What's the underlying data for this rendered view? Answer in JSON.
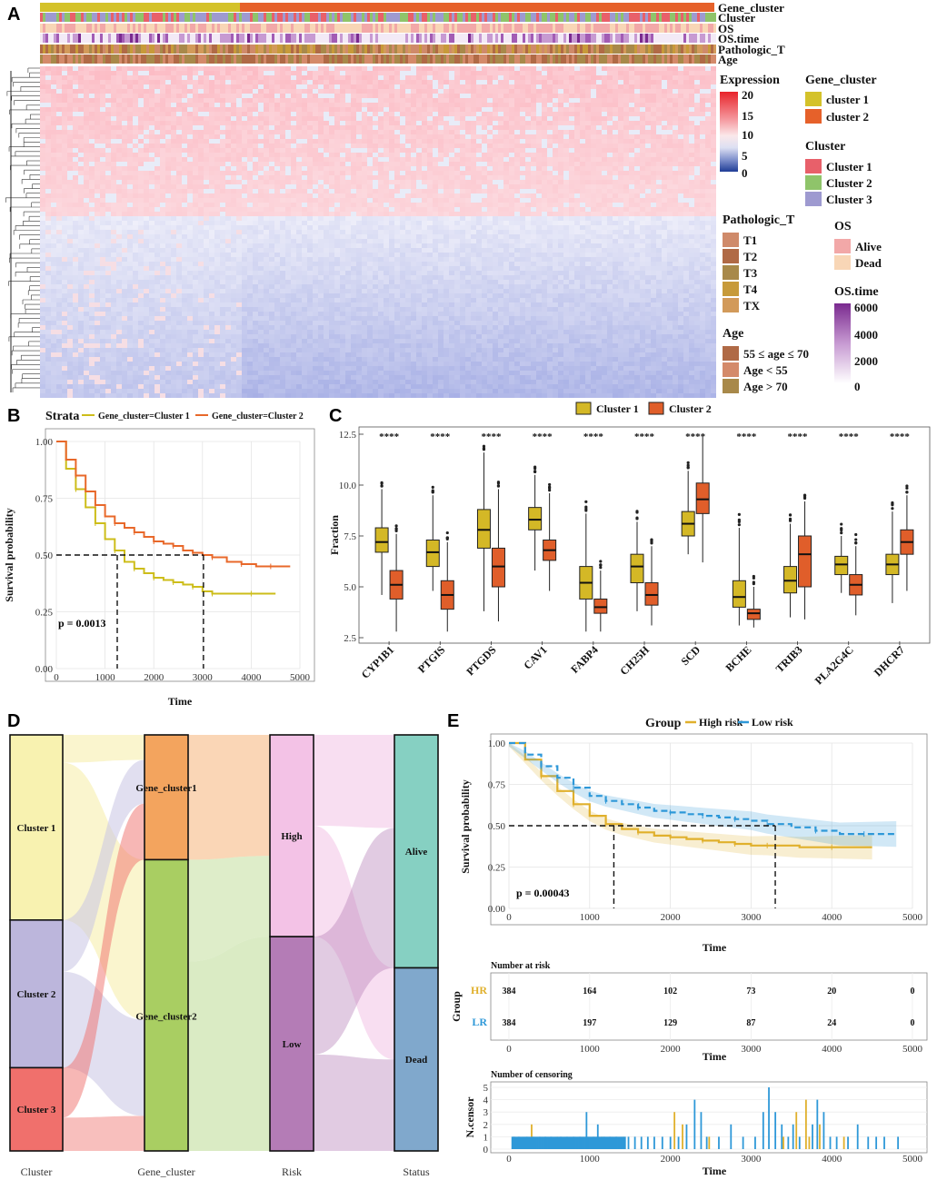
{
  "panel_labels": [
    "A",
    "B",
    "C",
    "D",
    "E"
  ],
  "panel_a": {
    "annotation_rows": [
      "Gene_cluster",
      "Cluster",
      "OS",
      "OS.time",
      "Pathologic_T",
      "Age"
    ],
    "expression_legend": {
      "title": "Expression",
      "ticks": [
        "20",
        "15",
        "10",
        "5",
        "0"
      ]
    },
    "gene_cluster_legend": {
      "title": "Gene_cluster",
      "items": [
        {
          "label": "cluster 1",
          "color": "#d4c22a"
        },
        {
          "label": "cluster 2",
          "color": "#e6612a"
        }
      ]
    },
    "cluster_legend": {
      "title": "Cluster",
      "items": [
        {
          "label": "Cluster 1",
          "color": "#e8606a"
        },
        {
          "label": "Cluster 2",
          "color": "#8fc46a"
        },
        {
          "label": "Cluster 3",
          "color": "#9e9ad0"
        }
      ]
    },
    "pathologic_t_legend": {
      "title": "Pathologic_T",
      "items": [
        {
          "label": "T1",
          "color": "#cf8a6a"
        },
        {
          "label": "T2",
          "color": "#b06a46"
        },
        {
          "label": "T3",
          "color": "#a8894a"
        },
        {
          "label": "T4",
          "color": "#c79a3a"
        },
        {
          "label": "TX",
          "color": "#d29a5a"
        }
      ]
    },
    "os_legend": {
      "title": "OS",
      "items": [
        {
          "label": "Alive",
          "color": "#f2a8a8"
        },
        {
          "label": "Dead",
          "color": "#f8d6b6"
        }
      ]
    },
    "os_time_legend": {
      "title": "OS.time",
      "ticks": [
        "6000",
        "4000",
        "2000",
        "0"
      ]
    },
    "age_legend": {
      "title": "Age",
      "items": [
        {
          "label": "55 ≤ age ≤ 70",
          "color": "#b06a46"
        },
        {
          "label": "Age < 55",
          "color": "#d48a6a"
        },
        {
          "label": "Age > 70",
          "color": "#a8894a"
        }
      ]
    }
  },
  "chart_data": [
    {
      "panel": "B",
      "type": "line",
      "xlabel": "Time",
      "ylabel": "Survival probability",
      "legend_title": "Strata",
      "xlim": [
        0,
        5000
      ],
      "ylim": [
        0,
        1
      ],
      "xticks": [
        0,
        1000,
        2000,
        3000,
        4000,
        5000
      ],
      "yticks": [
        0.0,
        0.25,
        0.5,
        0.75,
        1.0
      ],
      "xtick_labels": [
        "0",
        "1000",
        "2000",
        "3000",
        "4000",
        "5000"
      ],
      "ytick_labels": [
        "0.00",
        "0.25",
        "0.50",
        "0.75",
        "1.00"
      ],
      "annotation": "p = 0.0013",
      "median_lines": [
        1250,
        3020
      ],
      "series": [
        {
          "name": "Gene_cluster=Cluster 1",
          "color": "#cdbd1a",
          "x": [
            0,
            200,
            400,
            600,
            800,
            1000,
            1200,
            1400,
            1600,
            1800,
            2000,
            2200,
            2400,
            2600,
            2800,
            3000,
            3200,
            3600,
            4000,
            4500
          ],
          "y": [
            1.0,
            0.88,
            0.79,
            0.71,
            0.64,
            0.57,
            0.52,
            0.47,
            0.44,
            0.42,
            0.4,
            0.39,
            0.38,
            0.37,
            0.36,
            0.34,
            0.33,
            0.33,
            0.33,
            0.33
          ]
        },
        {
          "name": "Gene_cluster=Cluster 2",
          "color": "#e8682a",
          "x": [
            0,
            200,
            400,
            600,
            800,
            1000,
            1200,
            1400,
            1600,
            1800,
            2000,
            2200,
            2400,
            2600,
            2800,
            3000,
            3200,
            3500,
            3800,
            4100,
            4400,
            4800
          ],
          "y": [
            1.0,
            0.92,
            0.85,
            0.78,
            0.72,
            0.67,
            0.64,
            0.62,
            0.6,
            0.58,
            0.56,
            0.55,
            0.54,
            0.52,
            0.51,
            0.5,
            0.49,
            0.47,
            0.46,
            0.45,
            0.45,
            0.45
          ]
        }
      ]
    },
    {
      "panel": "C",
      "type": "bar",
      "subtype": "boxplot",
      "ylabel": "Fraction",
      "ylim": [
        2.5,
        12.5
      ],
      "yticks": [
        2.5,
        5.0,
        7.5,
        10.0,
        12.5
      ],
      "ytick_labels": [
        "2.5",
        "5.0",
        "7.5",
        "10.0",
        "12.5"
      ],
      "categories": [
        "CYP1B1",
        "PTGIS",
        "PTGDS",
        "CAV1",
        "FABP4",
        "CH25H",
        "SCD",
        "BCHE",
        "TRIB3",
        "PLA2G4C",
        "DHCR7"
      ],
      "significance": [
        "****",
        "****",
        "****",
        "****",
        "****",
        "****",
        "****",
        "****",
        "****",
        "****",
        "****"
      ],
      "series": [
        {
          "name": "Cluster 1",
          "color": "#d4b826",
          "min": [
            4.6,
            4.8,
            3.8,
            5.8,
            2.8,
            3.8,
            6.6,
            3.1,
            3.5,
            4.7,
            4.2
          ],
          "q1": [
            6.7,
            6.0,
            6.9,
            7.8,
            4.4,
            5.2,
            7.5,
            4.0,
            4.7,
            5.6,
            5.6
          ],
          "median": [
            7.2,
            6.7,
            7.8,
            8.3,
            5.2,
            6.0,
            8.1,
            4.5,
            5.3,
            6.1,
            6.1
          ],
          "q3": [
            7.9,
            7.3,
            8.8,
            8.9,
            6.0,
            6.6,
            8.7,
            5.3,
            6.0,
            6.5,
            6.6
          ],
          "max": [
            9.8,
            9.5,
            11.6,
            10.5,
            8.6,
            8.2,
            10.7,
            7.9,
            8.1,
            7.5,
            8.7
          ]
        },
        {
          "name": "Cluster 2",
          "color": "#e05e2a",
          "min": [
            2.8,
            2.8,
            3.3,
            4.8,
            2.8,
            3.1,
            6.2,
            3.0,
            3.4,
            3.6,
            4.8
          ],
          "q1": [
            4.4,
            3.9,
            5.0,
            6.3,
            3.7,
            4.1,
            8.6,
            3.4,
            5.0,
            4.6,
            6.6
          ],
          "median": [
            5.1,
            4.6,
            6.0,
            6.8,
            4.0,
            4.6,
            9.3,
            3.7,
            6.6,
            5.1,
            7.2
          ],
          "q3": [
            5.8,
            5.3,
            6.9,
            7.3,
            4.4,
            5.2,
            10.1,
            3.9,
            7.5,
            5.6,
            7.8
          ],
          "max": [
            7.6,
            7.2,
            9.8,
            9.6,
            5.8,
            7.0,
            12.4,
            5.0,
            9.2,
            7.0,
            9.5
          ]
        }
      ]
    },
    {
      "panel": "D",
      "type": "bar",
      "subtype": "alluvial",
      "axes": [
        "Cluster",
        "Gene_cluster",
        "Risk",
        "Status"
      ],
      "strata": {
        "Cluster": [
          {
            "label": "Cluster 1",
            "share": 0.445,
            "color": "#f8f2b0"
          },
          {
            "label": "Cluster 2",
            "share": 0.355,
            "color": "#bcb6dc"
          },
          {
            "label": "Cluster 3",
            "share": 0.2,
            "color": "#f0706c"
          }
        ],
        "Gene_cluster": [
          {
            "label": "Gene_cluster1",
            "share": 0.3,
            "color": "#f3a45e"
          },
          {
            "label": "Gene_cluster2",
            "share": 0.7,
            "color": "#a9ce62"
          }
        ],
        "Risk": [
          {
            "label": "High",
            "share": 0.485,
            "color": "#f3c2e6"
          },
          {
            "label": "Low",
            "share": 0.515,
            "color": "#b47cb6"
          }
        ],
        "Status": [
          {
            "label": "Alive",
            "share": 0.56,
            "color": "#86d0c2"
          },
          {
            "label": "Dead",
            "share": 0.44,
            "color": "#80a8cc"
          }
        ]
      }
    },
    {
      "panel": "E",
      "type": "line",
      "legend_title": "Group",
      "xlabel": "Time",
      "ylabel": "Survival probability",
      "xlim": [
        0,
        5000
      ],
      "ylim": [
        0,
        1
      ],
      "xticks": [
        0,
        1000,
        2000,
        3000,
        4000,
        5000
      ],
      "yticks": [
        0.0,
        0.25,
        0.5,
        0.75,
        1.0
      ],
      "xtick_labels": [
        "0",
        "1000",
        "2000",
        "3000",
        "4000",
        "5000"
      ],
      "ytick_labels": [
        "0.00",
        "0.25",
        "0.50",
        "0.75",
        "1.00"
      ],
      "annotation": "p = 0.00043",
      "median_lines": [
        1300,
        3300
      ],
      "series": [
        {
          "name": "High risk",
          "color": "#e0b02c",
          "x": [
            0,
            200,
            400,
            600,
            800,
            1000,
            1200,
            1400,
            1600,
            1800,
            2000,
            2200,
            2400,
            2600,
            2800,
            3000,
            3200,
            3600,
            4000,
            4500
          ],
          "y": [
            1.0,
            0.9,
            0.8,
            0.71,
            0.63,
            0.56,
            0.51,
            0.48,
            0.46,
            0.44,
            0.43,
            0.42,
            0.41,
            0.4,
            0.39,
            0.38,
            0.38,
            0.37,
            0.37,
            0.37
          ]
        },
        {
          "name": "Low risk",
          "color": "#2e98d8",
          "x": [
            0,
            200,
            400,
            600,
            800,
            1000,
            1200,
            1400,
            1600,
            1800,
            2000,
            2200,
            2400,
            2600,
            2800,
            3000,
            3200,
            3500,
            3800,
            4100,
            4400,
            4800
          ],
          "y": [
            1.0,
            0.93,
            0.86,
            0.79,
            0.73,
            0.68,
            0.65,
            0.63,
            0.61,
            0.59,
            0.58,
            0.57,
            0.56,
            0.55,
            0.54,
            0.53,
            0.51,
            0.49,
            0.47,
            0.45,
            0.45,
            0.45
          ]
        }
      ],
      "risk_table": {
        "title": "Number at risk",
        "ylabel": "Group",
        "xlabel": "Time",
        "times": [
          0,
          1000,
          2000,
          3000,
          4000,
          5000
        ],
        "rows": [
          {
            "label": "HR",
            "color": "#e0b02c",
            "values": [
              "384",
              "164",
              "102",
              "73",
              "20",
              "0"
            ]
          },
          {
            "label": "LR",
            "color": "#2e98d8",
            "values": [
              "384",
              "197",
              "129",
              "87",
              "24",
              "0"
            ]
          }
        ]
      },
      "censor_plot": {
        "title": "Number of censoring",
        "ylabel": "N.censor",
        "xlabel": "Time",
        "yticks": [
          0,
          1,
          2,
          3,
          4,
          5
        ],
        "ytick_labels": [
          "0",
          "1",
          "2",
          "3",
          "4",
          "5"
        ],
        "high_risk_x": [
          280,
          600,
          1150,
          1420,
          2050,
          2150,
          2480,
          3400,
          3560,
          3680,
          3720,
          3850,
          4150
        ],
        "high_risk_y": [
          2,
          1,
          1,
          1,
          3,
          2,
          1,
          1,
          3,
          4,
          1,
          2,
          1
        ],
        "low_risk_x": [
          60,
          120,
          220,
          300,
          380,
          450,
          520,
          640,
          720,
          800,
          880,
          960,
          1050,
          1100,
          1180,
          1250,
          1330,
          1480,
          1560,
          1640,
          1720,
          1800,
          1900,
          2000,
          2100,
          2200,
          2300,
          2380,
          2450,
          2600,
          2750,
          2900,
          3050,
          3150,
          3220,
          3300,
          3380,
          3460,
          3520,
          3600,
          3760,
          3820,
          3900,
          3980,
          4060,
          4200,
          4320,
          4450,
          4550,
          4650,
          4820
        ],
        "low_risk_y": [
          1,
          1,
          1,
          1,
          1,
          1,
          1,
          1,
          1,
          1,
          1,
          3,
          1,
          2,
          1,
          1,
          1,
          1,
          1,
          1,
          1,
          1,
          1,
          1,
          1,
          2,
          4,
          3,
          1,
          1,
          2,
          1,
          1,
          3,
          5,
          3,
          2,
          1,
          2,
          1,
          2,
          4,
          3,
          1,
          1,
          1,
          2,
          1,
          1,
          1,
          1
        ]
      }
    }
  ]
}
